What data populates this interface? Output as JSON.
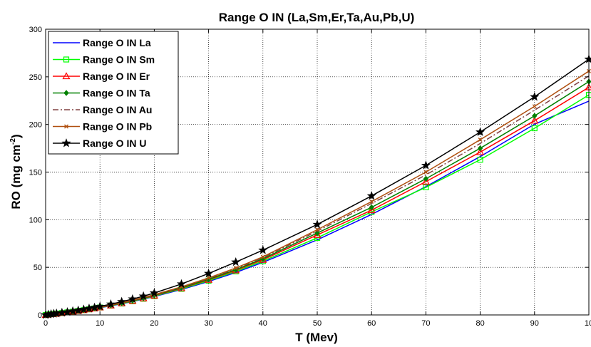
{
  "chart_data": {
    "type": "line",
    "title": "Range O IN  (La,Sm,Er,Ta,Au,Pb,U)",
    "xlabel": "T (Mev)",
    "ylabel_main": "RO (mg cm",
    "ylabel_sup": "-2",
    "ylabel_end": ")",
    "xlim": [
      0,
      100
    ],
    "ylim": [
      0,
      300
    ],
    "xticks": [
      "0",
      "10",
      "20",
      "30",
      "40",
      "50",
      "60",
      "70",
      "80",
      "90",
      "10"
    ],
    "yticks": [
      "0",
      "50",
      "100",
      "150",
      "200",
      "250",
      "300"
    ],
    "grid": true,
    "legend_position": "top-left",
    "x": [
      0,
      0.5,
      1,
      1.5,
      2,
      3,
      4,
      5,
      6,
      7,
      8,
      9,
      10,
      12,
      14,
      16,
      18,
      20,
      25,
      30,
      35,
      40,
      50,
      60,
      70,
      80,
      90,
      100
    ],
    "series": [
      {
        "name": "Range O IN La",
        "color": "#0000ff",
        "dash": "",
        "marker": "none",
        "values": [
          0.0,
          0.5,
          0.8,
          1.1,
          1.4,
          2.0,
          2.7,
          3.4,
          4.1,
          4.9,
          5.8,
          6.7,
          7.6,
          9.5,
          11.7,
          14.1,
          16.6,
          19.3,
          26.7,
          35.1,
          44.6,
          55.2,
          78.9,
          105.5,
          134.7,
          166.3,
          200.3,
          224.5
        ]
      },
      {
        "name": "Range O IN Sm",
        "color": "#00ff00",
        "dash": "",
        "marker": "square",
        "values": [
          0.0,
          0.5,
          0.8,
          1.1,
          1.4,
          2.0,
          2.7,
          3.4,
          4.2,
          5.0,
          5.9,
          6.8,
          7.8,
          9.8,
          12.0,
          14.4,
          17.0,
          19.8,
          27.4,
          36.0,
          45.7,
          56.5,
          80.9,
          108.2,
          134.0,
          163.0,
          196.0,
          231.0
        ]
      },
      {
        "name": "Range O IN Er",
        "color": "#ff0000",
        "dash": "",
        "marker": "triangle",
        "values": [
          0.0,
          0.5,
          0.8,
          1.1,
          1.4,
          2.1,
          2.8,
          3.5,
          4.3,
          5.1,
          6.0,
          6.9,
          7.9,
          10.0,
          12.3,
          14.8,
          17.4,
          20.3,
          28.0,
          36.9,
          46.8,
          57.9,
          84.0,
          110.0,
          140.0,
          171.0,
          204.0,
          239.0
        ]
      },
      {
        "name": "Range O IN Ta",
        "color": "#008000",
        "dash": "",
        "marker": "diamond",
        "values": [
          0.0,
          0.5,
          0.8,
          1.1,
          1.5,
          2.1,
          2.8,
          3.6,
          4.4,
          5.2,
          6.1,
          7.1,
          8.1,
          10.2,
          12.5,
          15.0,
          17.7,
          20.6,
          28.5,
          37.5,
          47.6,
          59.0,
          86.0,
          113.0,
          143.0,
          175.0,
          209.0,
          245.0
        ]
      },
      {
        "name": "Range O IN Au",
        "color": "#804040",
        "dash": "8,3,2,3",
        "marker": "none",
        "values": [
          0.0,
          0.5,
          0.8,
          1.2,
          1.5,
          2.2,
          2.9,
          3.7,
          4.5,
          5.3,
          6.2,
          7.2,
          8.2,
          10.4,
          12.7,
          15.3,
          18.0,
          21.0,
          29.1,
          38.3,
          48.6,
          60.1,
          88.0,
          117.0,
          147.0,
          180.0,
          215.0,
          251.0
        ]
      },
      {
        "name": "Range O IN Pb",
        "color": "#b05010",
        "dash": "",
        "marker": "x",
        "values": [
          0.0,
          0.5,
          0.8,
          1.2,
          1.5,
          2.2,
          2.9,
          3.7,
          4.5,
          5.4,
          6.3,
          7.3,
          8.3,
          10.5,
          12.9,
          15.5,
          18.3,
          21.3,
          29.5,
          38.8,
          49.3,
          61.0,
          89.5,
          119.0,
          150.0,
          184.0,
          219.0,
          256.0
        ]
      },
      {
        "name": "Range O IN U",
        "color": "#000000",
        "dash": "",
        "marker": "star",
        "values": [
          0.0,
          0.5,
          0.9,
          1.3,
          1.6,
          2.4,
          3.1,
          4.0,
          4.8,
          5.8,
          6.8,
          7.8,
          8.9,
          11.3,
          13.9,
          16.7,
          19.7,
          23.0,
          32.5,
          43.5,
          55.5,
          68.0,
          95.0,
          125.0,
          157.0,
          192.0,
          229.0,
          268.5
        ]
      }
    ]
  }
}
